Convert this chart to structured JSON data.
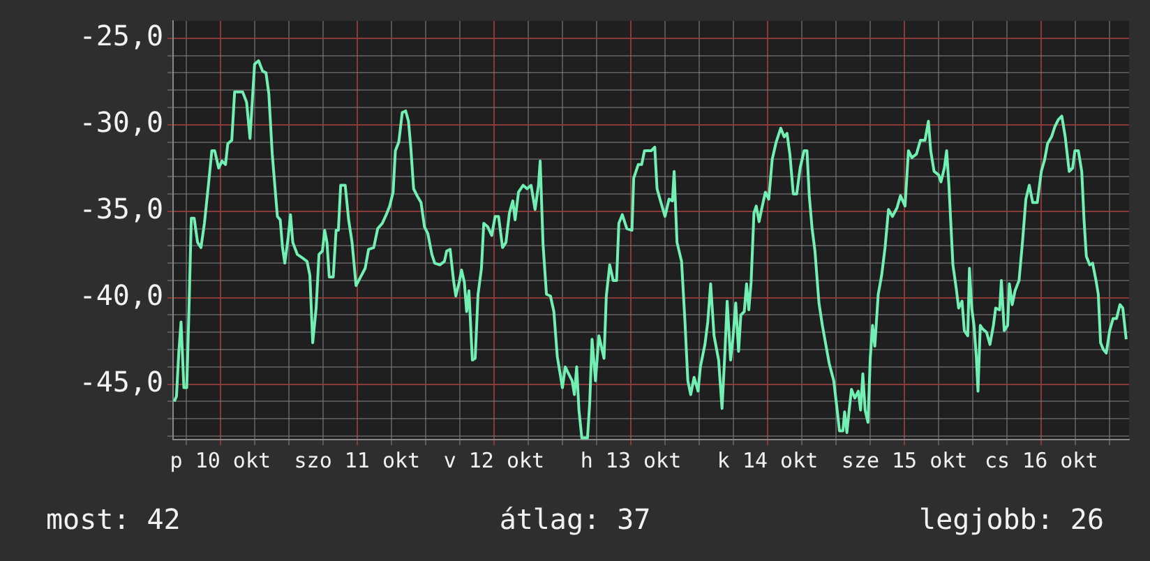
{
  "chart_data": {
    "type": "line",
    "xlim": [
      "--10-10T03:42",
      "--10-17T03:24"
    ],
    "ylim": [
      -48.2,
      -24
    ],
    "xticks": [
      {
        "value": "--10-10T06:00",
        "label": null
      },
      {
        "value": "--10-10T12:00",
        "label": "p 10 okt"
      },
      {
        "value": "--10-10T18:00",
        "label": null
      },
      {
        "value": "--10-11T00:00",
        "label": null
      },
      {
        "value": "--10-11T06:00",
        "label": null
      },
      {
        "value": "--10-11T12:00",
        "label": "szo 11 okt"
      },
      {
        "value": "--10-11T18:00",
        "label": null
      },
      {
        "value": "--10-12T00:00",
        "label": null
      },
      {
        "value": "--10-12T06:00",
        "label": null
      },
      {
        "value": "--10-12T12:00",
        "label": "v 12 okt"
      },
      {
        "value": "--10-12T18:00",
        "label": null
      },
      {
        "value": "--10-13T00:00",
        "label": null
      },
      {
        "value": "--10-13T06:00",
        "label": null
      },
      {
        "value": "--10-13T12:00",
        "label": "h 13 okt"
      },
      {
        "value": "--10-13T18:00",
        "label": null
      },
      {
        "value": "--10-14T00:00",
        "label": null
      },
      {
        "value": "--10-14T06:00",
        "label": null
      },
      {
        "value": "--10-14T12:00",
        "label": "k 14 okt"
      },
      {
        "value": "--10-14T18:00",
        "label": null
      },
      {
        "value": "--10-15T00:00",
        "label": null
      },
      {
        "value": "--10-15T06:00",
        "label": null
      },
      {
        "value": "--10-15T12:00",
        "label": "sze 15 okt"
      },
      {
        "value": "--10-15T18:00",
        "label": null
      },
      {
        "value": "--10-16T00:00",
        "label": null
      },
      {
        "value": "--10-16T06:00",
        "label": null
      },
      {
        "value": "--10-16T12:00",
        "label": "cs 16 okt"
      },
      {
        "value": "--10-16T18:00",
        "label": null
      },
      {
        "value": "--10-17T00:00",
        "label": null
      }
    ],
    "yticks": [
      {
        "value": -48,
        "label": null
      },
      {
        "value": -47,
        "label": null
      },
      {
        "value": -46,
        "label": null
      },
      {
        "value": -45,
        "label": "-45,0"
      },
      {
        "value": -44,
        "label": null
      },
      {
        "value": -43,
        "label": null
      },
      {
        "value": -42,
        "label": null
      },
      {
        "value": -41,
        "label": null
      },
      {
        "value": -40,
        "label": "-40,0"
      },
      {
        "value": -39,
        "label": null
      },
      {
        "value": -38,
        "label": null
      },
      {
        "value": -37,
        "label": null
      },
      {
        "value": -36,
        "label": null
      },
      {
        "value": -35,
        "label": "-35,0"
      },
      {
        "value": -34,
        "label": null
      },
      {
        "value": -33,
        "label": null
      },
      {
        "value": -32,
        "label": null
      },
      {
        "value": -31,
        "label": null
      },
      {
        "value": -30,
        "label": "-30,0"
      },
      {
        "value": -29,
        "label": null
      },
      {
        "value": -28,
        "label": null
      },
      {
        "value": -27,
        "label": null
      },
      {
        "value": -26,
        "label": null
      },
      {
        "value": -25,
        "label": "-25,0"
      }
    ],
    "grid": true,
    "legend": false,
    "marker": "none",
    "annotations": [
      "most: 42",
      "átlag: 37",
      "legjobb: 26"
    ],
    "series": [
      {
        "color": "#72f0b4",
        "x": [
          "--10-10T03:54",
          "--10-10T04:18",
          "--10-10T04:42",
          "--10-10T05:06",
          "--10-10T05:36",
          "--10-10T06:06",
          "--10-10T06:30",
          "--10-10T06:54",
          "--10-10T07:24",
          "--10-10T08:00",
          "--10-10T08:36",
          "--10-10T09:12",
          "--10-10T09:54",
          "--10-10T10:30",
          "--10-10T11:00",
          "--10-10T11:42",
          "--10-10T12:18",
          "--10-10T12:54",
          "--10-10T13:18",
          "--10-10T14:00",
          "--10-10T14:30",
          "--10-10T15:54",
          "--10-10T16:36",
          "--10-10T17:12",
          "--10-10T18:00",
          "--10-10T18:42",
          "--10-10T19:24",
          "--10-10T20:00",
          "--10-10T20:30",
          "--10-10T21:06",
          "--10-10T21:30",
          "--10-10T22:00",
          "--10-10T22:30",
          "--10-10T22:54",
          "--10-10T23:18",
          "--10-10T23:54",
          "--10-11T00:18",
          "--10-11T00:42",
          "--10-11T01:30",
          "--10-11T02:24",
          "--10-11T03:12",
          "--10-11T03:42",
          "--10-11T04:12",
          "--10-11T04:48",
          "--10-11T05:18",
          "--10-11T05:54",
          "--10-11T06:18",
          "--10-11T06:42",
          "--10-11T07:06",
          "--10-11T07:48",
          "--10-11T08:18",
          "--10-11T08:42",
          "--10-11T09:06",
          "--10-11T09:54",
          "--10-11T10:30",
          "--10-11T11:06",
          "--10-11T11:48",
          "--10-11T12:36",
          "--10-11T13:24",
          "--10-11T14:00",
          "--10-11T14:54",
          "--10-11T15:36",
          "--10-11T16:24",
          "--10-11T17:06",
          "--10-11T17:42",
          "--10-11T18:18",
          "--10-11T18:42",
          "--10-11T19:18",
          "--10-11T19:54",
          "--10-11T20:30",
          "--10-11T21:00",
          "--10-11T21:24",
          "--10-11T21:54",
          "--10-11T22:30",
          "--10-11T23:12",
          "--10-11T23:48",
          "--10-12T00:24",
          "--10-12T01:06",
          "--10-12T01:36",
          "--10-12T02:30",
          "--10-12T03:18",
          "--10-12T03:42",
          "--10-12T04:18",
          "--10-12T04:54",
          "--10-12T05:18",
          "--10-12T05:54",
          "--10-12T06:18",
          "--10-12T06:48",
          "--10-12T07:12",
          "--10-12T07:36",
          "--10-12T08:12",
          "--10-12T08:42",
          "--10-12T09:12",
          "--10-12T09:48",
          "--10-12T10:12",
          "--10-12T10:54",
          "--10-12T11:36",
          "--10-12T12:12",
          "--10-12T12:48",
          "--10-12T13:30",
          "--10-12T14:06",
          "--10-12T14:42",
          "--10-12T15:18",
          "--10-12T15:42",
          "--10-12T16:18",
          "--10-12T17:06",
          "--10-12T17:48",
          "--10-12T18:30",
          "--10-12T19:12",
          "--10-12T19:48",
          "--10-12T20:06",
          "--10-12T20:36",
          "--10-12T21:12",
          "--10-12T21:54",
          "--10-12T22:30",
          "--10-12T23:06",
          "--10-13T00:00",
          "--10-13T00:30",
          "--10-13T01:06",
          "--10-13T01:42",
          "--10-13T02:06",
          "--10-13T02:30",
          "--10-13T02:54",
          "--10-13T03:24",
          "--10-13T04:24",
          "--10-13T04:48",
          "--10-13T05:12",
          "--10-13T05:48",
          "--10-13T06:24",
          "--10-13T07:18",
          "--10-13T07:42",
          "--10-13T08:18",
          "--10-13T08:54",
          "--10-13T09:30",
          "--10-13T09:54",
          "--10-13T10:30",
          "--10-13T11:18",
          "--10-13T12:12",
          "--10-13T12:30",
          "--10-13T13:18",
          "--10-13T13:54",
          "--10-13T14:24",
          "--10-13T15:36",
          "--10-13T16:12",
          "--10-13T16:36",
          "--10-13T17:12",
          "--10-13T18:00",
          "--10-13T18:42",
          "--10-13T19:18",
          "--10-13T19:36",
          "--10-13T20:06",
          "--10-13T20:54",
          "--10-13T21:30",
          "--10-13T22:00",
          "--10-13T22:30",
          "--10-13T23:06",
          "--10-13T23:48",
          "--10-14T00:12",
          "--10-14T01:00",
          "--10-14T01:30",
          "--10-14T02:00",
          "--10-14T02:36",
          "--10-14T03:24",
          "--10-14T04:00",
          "--10-14T04:30",
          "--10-14T04:54",
          "--10-14T05:30",
          "--10-14T05:54",
          "--10-14T06:24",
          "--10-14T06:54",
          "--10-14T07:18",
          "--10-14T07:54",
          "--10-14T08:18",
          "--10-14T08:42",
          "--10-14T09:06",
          "--10-14T09:36",
          "--10-14T10:00",
          "--10-14T10:30",
          "--10-14T11:00",
          "--10-14T11:36",
          "--10-14T12:12",
          "--10-14T12:48",
          "--10-14T13:30",
          "--10-14T14:18",
          "--10-14T14:54",
          "--10-14T15:24",
          "--10-14T15:54",
          "--10-14T16:30",
          "--10-14T17:06",
          "--10-14T17:42",
          "--10-14T18:24",
          "--10-14T18:54",
          "--10-14T19:18",
          "--10-14T19:48",
          "--10-14T20:18",
          "--10-14T21:00",
          "--10-14T21:36",
          "--10-14T22:12",
          "--10-14T22:48",
          "--10-14T23:36",
          "--10-15T00:12",
          "--10-15T00:36",
          "--10-15T01:12",
          "--10-15T01:30",
          "--10-15T01:54",
          "--10-15T02:18",
          "--10-15T02:42",
          "--10-15T03:18",
          "--10-15T03:54",
          "--10-15T04:18",
          "--10-15T04:42",
          "--10-15T05:06",
          "--10-15T05:36",
          "--10-15T06:00",
          "--10-15T06:24",
          "--10-15T06:48",
          "--10-15T07:24",
          "--10-15T08:00",
          "--10-15T08:36",
          "--10-15T09:12",
          "--10-15T09:54",
          "--10-15T10:42",
          "--10-15T11:18",
          "--10-15T12:06",
          "--10-15T12:42",
          "--10-15T13:18",
          "--10-15T14:06",
          "--10-15T14:48",
          "--10-15T15:36",
          "--10-15T16:12",
          "--10-15T16:36",
          "--10-15T17:12",
          "--10-15T18:00",
          "--10-15T18:24",
          "--10-15T19:00",
          "--10-15T19:24",
          "--10-15T19:48",
          "--10-15T20:30",
          "--10-15T21:06",
          "--10-15T21:30",
          "--10-15T22:06",
          "--10-15T22:30",
          "--10-15T23:06",
          "--10-15T23:24",
          "--10-15T23:48",
          "--10-16T00:12",
          "--10-16T00:36",
          "--10-16T00:54",
          "--10-16T01:18",
          "--10-16T01:42",
          "--10-16T02:24",
          "--10-16T03:00",
          "--10-16T03:36",
          "--10-16T04:00",
          "--10-16T04:42",
          "--10-16T05:00",
          "--10-16T05:30",
          "--10-16T06:06",
          "--10-16T06:24",
          "--10-16T06:54",
          "--10-16T07:24",
          "--10-16T08:06",
          "--10-16T08:42",
          "--10-16T09:18",
          "--10-16T09:54",
          "--10-16T10:30",
          "--10-16T11:18",
          "--10-16T12:00",
          "--10-16T12:36",
          "--10-16T13:06",
          "--10-16T13:48",
          "--10-16T14:24",
          "--10-16T15:00",
          "--10-16T15:36",
          "--10-16T16:12",
          "--10-16T16:54",
          "--10-16T17:30",
          "--10-16T17:54",
          "--10-16T18:30",
          "--10-16T19:06",
          "--10-16T19:30",
          "--10-16T19:54",
          "--10-16T20:30",
          "--10-16T21:00",
          "--10-16T21:36",
          "--10-16T22:00",
          "--10-16T22:24",
          "--10-16T22:54",
          "--10-16T23:24",
          "--10-17T00:00",
          "--10-17T00:36",
          "--10-17T01:12",
          "--10-17T01:48",
          "--10-17T02:18",
          "--10-17T02:54"
        ],
        "values": [
          -46.0,
          -45.7,
          -43.2,
          -41.4,
          -45.2,
          -45.2,
          -40.6,
          -35.4,
          -35.4,
          -36.8,
          -37.1,
          -35.7,
          -33.5,
          -31.5,
          -31.5,
          -32.5,
          -32.1,
          -32.3,
          -31.1,
          -30.9,
          -28.1,
          -28.1,
          -28.7,
          -30.8,
          -26.5,
          -26.3,
          -26.9,
          -27.0,
          -28.2,
          -31.7,
          -33.3,
          -35.3,
          -35.5,
          -37.1,
          -38.0,
          -36.5,
          -35.2,
          -36.8,
          -37.5,
          -37.7,
          -37.9,
          -38.7,
          -42.6,
          -40.6,
          -37.5,
          -37.3,
          -36.1,
          -36.8,
          -38.8,
          -38.8,
          -36.1,
          -36.1,
          -33.5,
          -33.5,
          -35.5,
          -36.8,
          -39.3,
          -38.8,
          -38.3,
          -37.2,
          -37.1,
          -36.0,
          -35.7,
          -35.2,
          -34.7,
          -33.9,
          -31.5,
          -31.0,
          -29.3,
          -29.2,
          -29.8,
          -31.3,
          -33.7,
          -34.1,
          -34.5,
          -35.9,
          -36.3,
          -37.5,
          -38.0,
          -38.1,
          -37.9,
          -37.3,
          -37.2,
          -39.0,
          -39.9,
          -39.1,
          -38.4,
          -39.1,
          -40.8,
          -39.6,
          -43.6,
          -43.5,
          -39.8,
          -38.3,
          -35.7,
          -35.9,
          -36.4,
          -35.3,
          -35.3,
          -37.1,
          -36.8,
          -35.1,
          -34.4,
          -35.5,
          -33.9,
          -33.5,
          -33.7,
          -33.5,
          -34.9,
          -33.5,
          -32.1,
          -36.9,
          -39.8,
          -39.9,
          -40.8,
          -43.4,
          -45.2,
          -44.0,
          -44.4,
          -44.8,
          -45.6,
          -44.0,
          -46.5,
          -48.1,
          -48.1,
          -46.0,
          -42.4,
          -44.8,
          -42.2,
          -43.5,
          -39.9,
          -38.1,
          -39.0,
          -39.0,
          -35.7,
          -35.2,
          -36.0,
          -36.1,
          -33.1,
          -32.3,
          -32.3,
          -31.5,
          -31.5,
          -31.3,
          -33.7,
          -34.4,
          -35.3,
          -34.3,
          -34.4,
          -32.7,
          -36.8,
          -37.9,
          -41.4,
          -44.8,
          -45.6,
          -44.6,
          -45.4,
          -44.0,
          -42.7,
          -41.4,
          -39.2,
          -42.2,
          -43.6,
          -46.4,
          -43.2,
          -40.2,
          -43.6,
          -42.4,
          -40.3,
          -43.1,
          -41.0,
          -40.8,
          -39.2,
          -40.7,
          -39.1,
          -35.1,
          -34.7,
          -35.6,
          -34.8,
          -33.9,
          -34.3,
          -32.0,
          -31.0,
          -30.2,
          -30.7,
          -30.5,
          -31.7,
          -34.0,
          -34.0,
          -32.5,
          -31.5,
          -31.5,
          -34.1,
          -36.0,
          -37.3,
          -40.3,
          -41.6,
          -42.7,
          -43.8,
          -44.8,
          -46.5,
          -47.7,
          -47.7,
          -46.6,
          -47.8,
          -46.5,
          -45.3,
          -45.8,
          -45.4,
          -46.5,
          -44.4,
          -46.5,
          -47.2,
          -43.5,
          -41.6,
          -42.8,
          -39.8,
          -38.7,
          -37.1,
          -34.9,
          -35.3,
          -34.8,
          -34.1,
          -34.7,
          -31.5,
          -31.9,
          -31.7,
          -30.9,
          -30.9,
          -29.8,
          -31.5,
          -32.7,
          -32.9,
          -33.3,
          -32.5,
          -31.5,
          -33.5,
          -38.1,
          -39.5,
          -40.6,
          -40.2,
          -41.9,
          -42.2,
          -38.3,
          -40.6,
          -41.6,
          -43.4,
          -45.4,
          -41.6,
          -41.8,
          -42.0,
          -42.7,
          -41.6,
          -40.6,
          -40.7,
          -39.0,
          -41.9,
          -41.6,
          -39.2,
          -40.4,
          -39.6,
          -39.0,
          -36.8,
          -34.3,
          -33.5,
          -34.5,
          -34.5,
          -32.7,
          -32.0,
          -31.1,
          -30.7,
          -30.1,
          -29.7,
          -29.5,
          -30.7,
          -32.7,
          -32.5,
          -31.5,
          -31.5,
          -32.7,
          -35.5,
          -37.6,
          -38.1,
          -38.0,
          -39.0,
          -39.8,
          -42.6,
          -43.0,
          -43.2,
          -41.9,
          -41.2,
          -41.2,
          -40.4,
          -40.6,
          -42.4
        ]
      }
    ]
  }
}
